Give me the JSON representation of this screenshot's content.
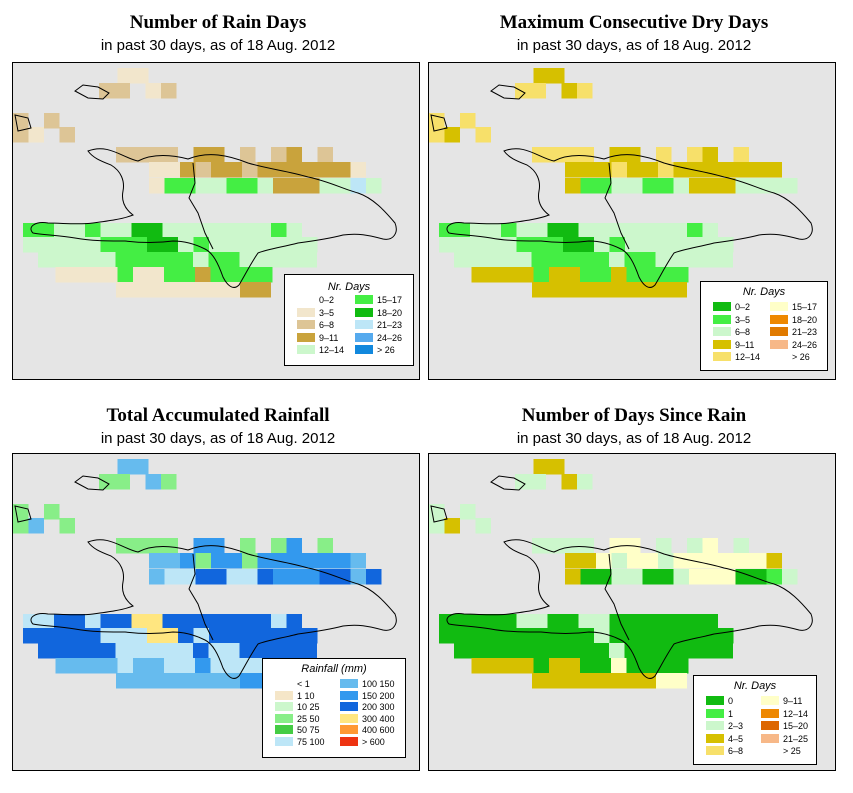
{
  "panels": [
    {
      "title": "Number of Rain Days",
      "subtitle": "in past 30 days, as of  18 Aug. 2012",
      "legend_title": "Nr. Days",
      "legend_items": [
        {
          "label": "0–2",
          "color": "#ffffff"
        },
        {
          "label": "3–5",
          "color": "#f2e6cc"
        },
        {
          "label": "6–8",
          "color": "#ddc596"
        },
        {
          "label": "9–11",
          "color": "#c9a33c"
        },
        {
          "label": "12–14",
          "color": "#ccf7cc"
        },
        {
          "label": "15–17",
          "color": "#44ee44"
        },
        {
          "label": "18–20",
          "color": "#11bb11"
        },
        {
          "label": "21–23",
          "color": "#bde6f7"
        },
        {
          "label": "24–26",
          "color": "#55aaee"
        },
        {
          "label": "> 26",
          "color": "#1188dd"
        }
      ],
      "grid_rows": [
        "...HH...",
        "..LL.HL..",
        "L.L...",
        "LH.L....",
        "..LLLL.MM.L.LM.L",
        "..HHMLMMLMMMMMMH.",
        "..HGGNNGGNMMMPPBN",
        "GGPPGNNFFNNPPPPPGP.",
        "PPPPPGGGFFNGPPPPPPP",
        "PPPPPGGGGGNGGPPPPP",
        ".HHHHGHHGGMGGGG",
        "..HHHHHHHHMM.",
        "..........LL.",
        "..........LL"
      ]
    },
    {
      "title": "Maximum Consecutive Dry Days",
      "subtitle": "in past 30 days, as of  18 Aug. 2012",
      "legend_title": "Nr. Days",
      "legend_items": [
        {
          "label": "0–2",
          "color": "#11bb11"
        },
        {
          "label": "3–5",
          "color": "#44ee44"
        },
        {
          "label": "6–8",
          "color": "#ccf7cc"
        },
        {
          "label": "9–11",
          "color": "#d6c000"
        },
        {
          "label": "12–14",
          "color": "#f7e06a"
        },
        {
          "label": "15–17",
          "color": "#ffffc8"
        },
        {
          "label": "18–20",
          "color": "#ee8800"
        },
        {
          "label": "21–23",
          "color": "#e07a00"
        },
        {
          "label": "24–26",
          "color": "#f7b888"
        },
        {
          "label": "> 26",
          "color": "#ffffff"
        }
      ]
    },
    {
      "title": "Total Accumulated Rainfall",
      "subtitle": "in past 30 days, as of  18 Aug. 2012",
      "legend_title": "Rainfall (mm)",
      "legend_items": [
        {
          "label": "< 1",
          "color": "#ffffff"
        },
        {
          "label": "1    10",
          "color": "#f5e6c8"
        },
        {
          "label": "10    25",
          "color": "#ccf7cc"
        },
        {
          "label": "25    50",
          "color": "#88ee88"
        },
        {
          "label": "50    75",
          "color": "#44cc44"
        },
        {
          "label": "75  100",
          "color": "#bde6f7"
        },
        {
          "label": "100  150",
          "color": "#66bbee"
        },
        {
          "label": "150  200",
          "color": "#3399ee"
        },
        {
          "label": "200  300",
          "color": "#1166dd"
        },
        {
          "label": "300  400",
          "color": "#ffe680"
        },
        {
          "label": "400  600",
          "color": "#ff9933"
        },
        {
          "label": "> 600",
          "color": "#ee3311"
        }
      ]
    },
    {
      "title": "Number of Days Since Rain",
      "subtitle": "in past 30 days, as of  18 Aug. 2012",
      "legend_title": "Nr. Days",
      "legend_items": [
        {
          "label": "0",
          "color": "#11bb11"
        },
        {
          "label": "1",
          "color": "#44ee44"
        },
        {
          "label": "2–3",
          "color": "#ccf7cc"
        },
        {
          "label": "4–5",
          "color": "#d6c000"
        },
        {
          "label": "6–8",
          "color": "#f7e06a"
        },
        {
          "label": "9–11",
          "color": "#ffffc8"
        },
        {
          "label": "12–14",
          "color": "#ee8800"
        },
        {
          "label": "15–20",
          "color": "#dd6600"
        },
        {
          "label": "21–25",
          "color": "#f7b888"
        },
        {
          "label": "> 25",
          "color": "#ffffff"
        }
      ]
    }
  ]
}
